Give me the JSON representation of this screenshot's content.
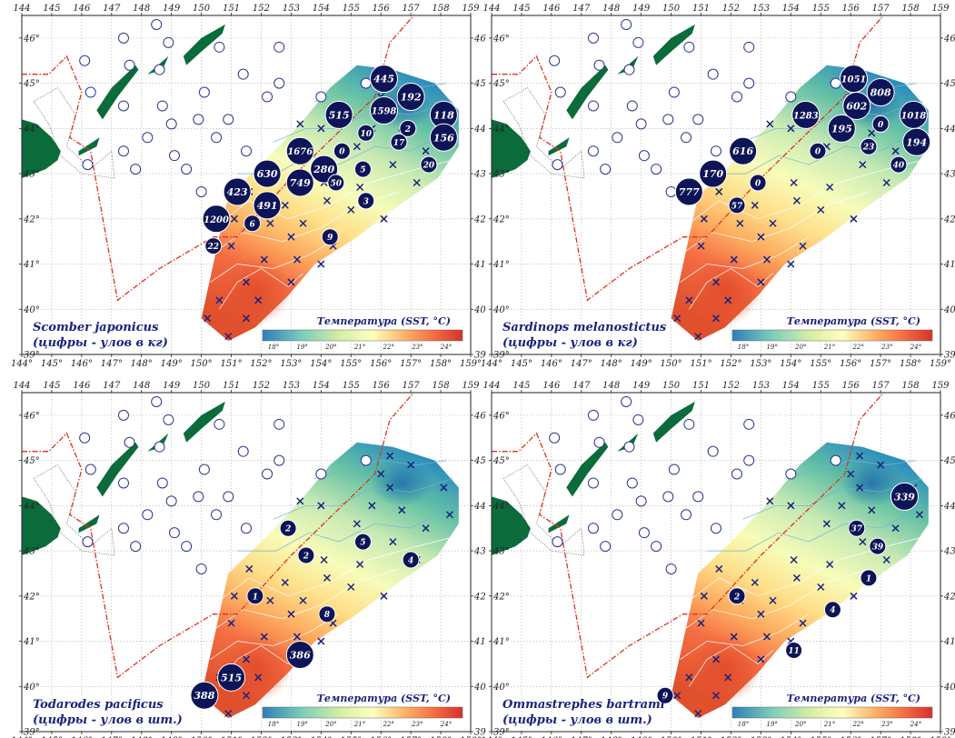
{
  "lon_ticks": [
    "144°",
    "145°",
    "146°",
    "147°",
    "148°",
    "149°",
    "150°",
    "151°",
    "152°",
    "153°",
    "154°",
    "155°",
    "156°",
    "157°",
    "158°",
    "159°"
  ],
  "lon_ticks_top": [
    "144",
    "145",
    "146",
    "147",
    "148",
    "149",
    "150",
    "151",
    "152",
    "153",
    "154",
    "155",
    "156",
    "157",
    "158",
    "159"
  ],
  "lat_ticks": [
    "46°",
    "45°",
    "44°",
    "43°",
    "42°",
    "41°",
    "40°",
    "39°"
  ],
  "lat_ticks_right": [
    "46",
    "45",
    "44",
    "43",
    "42",
    "41",
    "40",
    "39"
  ],
  "legend": {
    "title": "Температура (SST, °C)",
    "ticks": [
      "18°",
      "19°",
      "20°",
      "21°",
      "22°",
      "23°",
      "24°"
    ],
    "colors": [
      "#2c7fb8",
      "#7fcdbb",
      "#d9f0a3",
      "#ffffbf",
      "#fdae61",
      "#f46d43",
      "#d73027"
    ]
  },
  "colors": {
    "land": "#0b6b3a",
    "marker": "#0d1457",
    "border": "#e0301e",
    "empty_station": "#283593"
  },
  "panels": [
    {
      "species": "Scomber japonicus",
      "note": "(цифры - улов в кг)",
      "catches": [
        {
          "lon": 156.1,
          "lat": 45.1,
          "v": "445",
          "s": "lg"
        },
        {
          "lon": 157.0,
          "lat": 44.7,
          "v": "192",
          "s": "lg"
        },
        {
          "lon": 158.1,
          "lat": 44.3,
          "v": "118",
          "s": "lg"
        },
        {
          "lon": 154.6,
          "lat": 44.3,
          "v": "515",
          "s": "lg"
        },
        {
          "lon": 156.1,
          "lat": 44.4,
          "v": "1598",
          "s": "lg"
        },
        {
          "lon": 156.9,
          "lat": 44.0,
          "v": "2",
          "s": "sm"
        },
        {
          "lon": 155.5,
          "lat": 43.9,
          "v": "10",
          "s": "sm"
        },
        {
          "lon": 156.6,
          "lat": 43.7,
          "v": "17",
          "s": "sm"
        },
        {
          "lon": 158.1,
          "lat": 43.8,
          "v": "156",
          "s": "lg"
        },
        {
          "lon": 153.3,
          "lat": 43.5,
          "v": "1676",
          "s": "lg"
        },
        {
          "lon": 154.7,
          "lat": 43.5,
          "v": "0",
          "s": "sm"
        },
        {
          "lon": 154.1,
          "lat": 43.1,
          "v": "280",
          "s": "lg"
        },
        {
          "lon": 155.4,
          "lat": 43.1,
          "v": "5",
          "s": "sm"
        },
        {
          "lon": 157.6,
          "lat": 43.2,
          "v": "20",
          "s": "sm"
        },
        {
          "lon": 152.2,
          "lat": 43.0,
          "v": "630",
          "s": "lg"
        },
        {
          "lon": 153.3,
          "lat": 42.8,
          "v": "749",
          "s": "lg"
        },
        {
          "lon": 154.5,
          "lat": 42.8,
          "v": "50",
          "s": "sm"
        },
        {
          "lon": 151.2,
          "lat": 42.6,
          "v": "423",
          "s": "lg"
        },
        {
          "lon": 152.2,
          "lat": 42.3,
          "v": "491",
          "s": "lg"
        },
        {
          "lon": 155.5,
          "lat": 42.4,
          "v": "3",
          "s": "sm"
        },
        {
          "lon": 150.5,
          "lat": 42.0,
          "v": "1200",
          "s": "lg"
        },
        {
          "lon": 151.7,
          "lat": 41.9,
          "v": "6",
          "s": "sm"
        },
        {
          "lon": 154.3,
          "lat": 41.6,
          "v": "9",
          "s": "sm"
        },
        {
          "lon": 150.4,
          "lat": 41.4,
          "v": "22",
          "s": "sm"
        }
      ]
    },
    {
      "species": "Sardinops melanostictus",
      "note": "(цифры - улов в кг)",
      "catches": [
        {
          "lon": 156.1,
          "lat": 45.1,
          "v": "1051",
          "s": "lg"
        },
        {
          "lon": 157.0,
          "lat": 44.8,
          "v": "808",
          "s": "lg"
        },
        {
          "lon": 156.2,
          "lat": 44.5,
          "v": "602",
          "s": "lg"
        },
        {
          "lon": 154.5,
          "lat": 44.3,
          "v": "1283",
          "s": "lg"
        },
        {
          "lon": 158.1,
          "lat": 44.3,
          "v": "1018",
          "s": "lg"
        },
        {
          "lon": 157.0,
          "lat": 44.1,
          "v": "0",
          "s": "sm"
        },
        {
          "lon": 155.7,
          "lat": 44.0,
          "v": "195",
          "s": "lg"
        },
        {
          "lon": 158.2,
          "lat": 43.7,
          "v": "194",
          "s": "lg"
        },
        {
          "lon": 156.6,
          "lat": 43.6,
          "v": "23",
          "s": "sm"
        },
        {
          "lon": 152.4,
          "lat": 43.5,
          "v": "616",
          "s": "lg"
        },
        {
          "lon": 154.9,
          "lat": 43.5,
          "v": "0",
          "s": "sm"
        },
        {
          "lon": 157.6,
          "lat": 43.2,
          "v": "40",
          "s": "sm"
        },
        {
          "lon": 151.4,
          "lat": 43.0,
          "v": "170",
          "s": "lg"
        },
        {
          "lon": 152.9,
          "lat": 42.8,
          "v": "0",
          "s": "sm"
        },
        {
          "lon": 150.6,
          "lat": 42.6,
          "v": "777",
          "s": "lg"
        },
        {
          "lon": 152.2,
          "lat": 42.3,
          "v": "57",
          "s": "sm"
        }
      ]
    },
    {
      "species": "Todarodes pacificus",
      "note": "(цифры - улов в шт.)",
      "catches": [
        {
          "lon": 152.9,
          "lat": 43.5,
          "v": "2",
          "s": "sm"
        },
        {
          "lon": 155.4,
          "lat": 43.2,
          "v": "5",
          "s": "sm"
        },
        {
          "lon": 153.5,
          "lat": 42.9,
          "v": "2",
          "s": "sm"
        },
        {
          "lon": 157.0,
          "lat": 42.8,
          "v": "4",
          "s": "sm"
        },
        {
          "lon": 151.8,
          "lat": 42.0,
          "v": "1",
          "s": "sm"
        },
        {
          "lon": 154.2,
          "lat": 41.6,
          "v": "8",
          "s": "sm"
        },
        {
          "lon": 153.3,
          "lat": 40.7,
          "v": "386",
          "s": "lg"
        },
        {
          "lon": 151.0,
          "lat": 40.2,
          "v": "515",
          "s": "lg"
        },
        {
          "lon": 150.1,
          "lat": 39.8,
          "v": "388",
          "s": "lg"
        }
      ]
    },
    {
      "species": "Ommastrephes bartrami",
      "note": "(цифры - улов в шт.)",
      "catches": [
        {
          "lon": 157.8,
          "lat": 44.2,
          "v": "339",
          "s": "lg"
        },
        {
          "lon": 156.2,
          "lat": 43.5,
          "v": "37",
          "s": "sm"
        },
        {
          "lon": 156.9,
          "lat": 43.1,
          "v": "39",
          "s": "sm"
        },
        {
          "lon": 156.6,
          "lat": 42.4,
          "v": "1",
          "s": "sm"
        },
        {
          "lon": 152.2,
          "lat": 42.0,
          "v": "2",
          "s": "sm"
        },
        {
          "lon": 155.4,
          "lat": 41.7,
          "v": "4",
          "s": "sm"
        },
        {
          "lon": 154.1,
          "lat": 40.8,
          "v": "11",
          "s": "sm"
        },
        {
          "lon": 149.8,
          "lat": 39.8,
          "v": "9",
          "s": "sm"
        }
      ]
    }
  ],
  "stations_empty": [
    [
      148.5,
      46.3
    ],
    [
      147.4,
      46.0
    ],
    [
      148.9,
      45.9
    ],
    [
      150.6,
      45.8
    ],
    [
      152.6,
      45.8
    ],
    [
      146.1,
      45.5
    ],
    [
      147.6,
      45.4
    ],
    [
      148.6,
      45.3
    ],
    [
      151.4,
      45.2
    ],
    [
      152.6,
      45.0
    ],
    [
      155.5,
      45.0
    ],
    [
      146.3,
      44.8
    ],
    [
      150.1,
      44.8
    ],
    [
      152.2,
      44.7
    ],
    [
      154.0,
      44.7
    ],
    [
      147.4,
      44.5
    ],
    [
      148.7,
      44.5
    ],
    [
      149.9,
      44.2
    ],
    [
      150.9,
      44.2
    ],
    [
      149.0,
      44.1
    ],
    [
      148.2,
      43.8
    ],
    [
      150.5,
      43.8
    ],
    [
      147.4,
      43.5
    ],
    [
      149.1,
      43.4
    ],
    [
      151.5,
      43.5
    ],
    [
      146.2,
      43.2
    ],
    [
      147.8,
      43.1
    ],
    [
      149.5,
      43.1
    ],
    [
      150.0,
      42.6
    ]
  ],
  "stations_cross": [
    [
      154.0,
      44.0
    ],
    [
      153.3,
      44.1
    ],
    [
      155.2,
      43.6
    ],
    [
      156.4,
      43.2
    ],
    [
      154.1,
      42.8
    ],
    [
      155.3,
      42.7
    ],
    [
      157.2,
      42.8
    ],
    [
      151.6,
      42.6
    ],
    [
      152.8,
      42.3
    ],
    [
      154.2,
      42.4
    ],
    [
      155.0,
      42.2
    ],
    [
      156.1,
      42.0
    ],
    [
      151.1,
      42.0
    ],
    [
      152.3,
      41.9
    ],
    [
      153.4,
      41.9
    ],
    [
      153.0,
      41.6
    ],
    [
      154.4,
      41.4
    ],
    [
      151.0,
      41.4
    ],
    [
      152.1,
      41.1
    ],
    [
      153.2,
      41.1
    ],
    [
      154.0,
      41.0
    ],
    [
      153.0,
      40.6
    ],
    [
      151.5,
      40.6
    ],
    [
      150.6,
      40.2
    ],
    [
      151.9,
      40.2
    ],
    [
      151.5,
      39.8
    ],
    [
      150.2,
      39.8
    ],
    [
      150.9,
      39.4
    ],
    [
      156.3,
      44.4
    ],
    [
      157.0,
      44.9
    ],
    [
      158.1,
      44.4
    ],
    [
      156.0,
      44.7
    ],
    [
      157.5,
      43.5
    ],
    [
      156.7,
      43.9
    ],
    [
      155.7,
      44.0
    ],
    [
      158.3,
      43.8
    ],
    [
      156.3,
      45.1
    ]
  ]
}
